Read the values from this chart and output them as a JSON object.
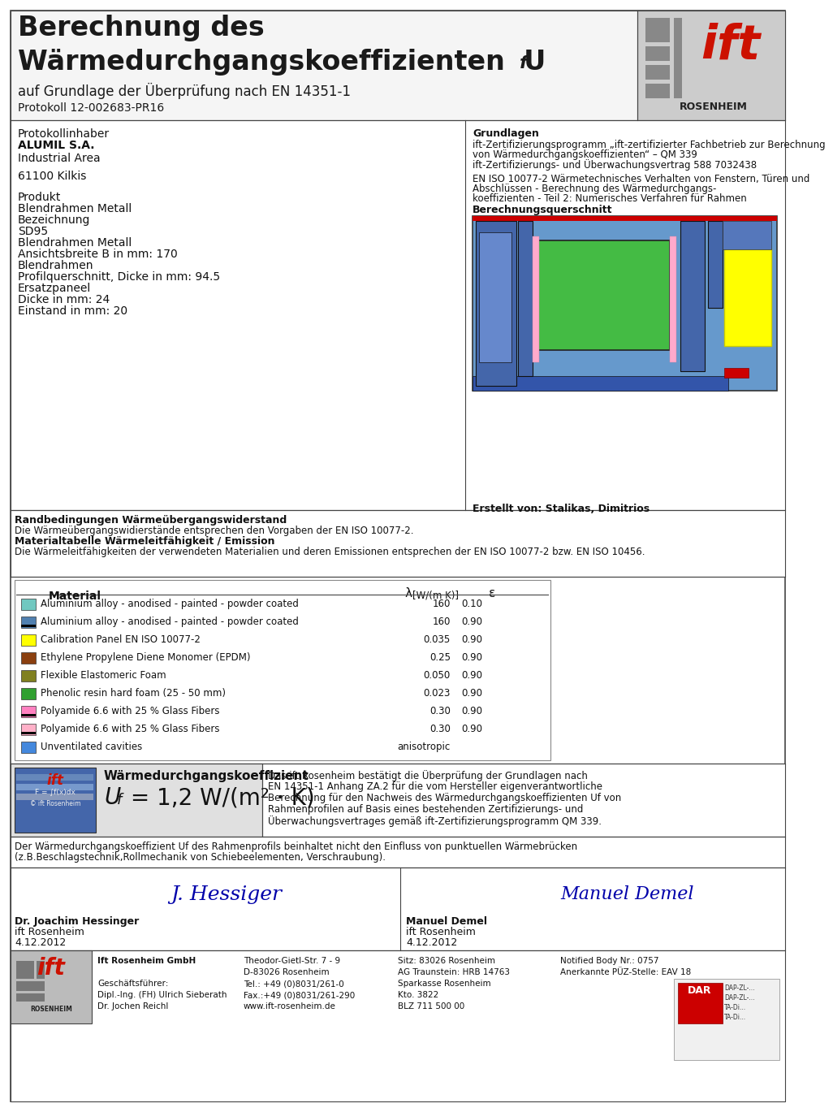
{
  "title_line1": "Berechnung des",
  "title_line2": "Wärmedurchgangskoeffizienten  U",
  "title_f_suffix": "f",
  "subtitle": "auf Grundlage der Überprüfung nach EN 14351-1",
  "protokoll": "Protokoll 12-002683-PR16",
  "left_col": [
    [
      "Protokollinhaber",
      false
    ],
    [
      "ALUMIL S.A.",
      true
    ],
    [
      "Industrial Area",
      false
    ],
    [
      "",
      false
    ],
    [
      "61100 Kilkis",
      false
    ],
    [
      "",
      false
    ],
    [
      "Produkt",
      false
    ],
    [
      "Blendrahmen Metall",
      false
    ],
    [
      "Bezeichnung",
      false
    ],
    [
      "SD95",
      false
    ],
    [
      "Blendrahmen Metall",
      false
    ],
    [
      "Ansichtsbreite B in mm: 170",
      false
    ],
    [
      "Blendrahmen",
      false
    ],
    [
      "Profilquerschnitt, Dicke in mm: 94.5",
      false
    ],
    [
      "Ersatzpaneel",
      false
    ],
    [
      "Dicke in mm: 24",
      false
    ],
    [
      "Einstand in mm: 20",
      false
    ]
  ],
  "grundlagen_title": "Grundlagen",
  "grundlagen_lines": [
    [
      "ift-Zertifizierungsprogramm „ift-zertifizierter Fachbetrieb zur Berechnung",
      false
    ],
    [
      "von Wärmedurchgangskoeffizienten“ – QM 339",
      false
    ],
    [
      "ift-Zertifizierungs- und Überwachungsvertrag 588 7032438",
      false
    ],
    [
      "",
      false
    ],
    [
      "EN ISO 10077-2 Wärmetechnisches Verhalten von Fenstern, Türen und",
      false
    ],
    [
      "Abschlüssen - Berechnung des Wärmedurchgangs-",
      false
    ],
    [
      "koeffizienten - Teil 2: Numerisches Verfahren für Rahmen",
      false
    ]
  ],
  "berechnungsquerschnitt": "Berechnungsquerschnitt",
  "erstellt_von": "Erstellt von: Stalikas, Dimitrios",
  "randbedingungen_title": "Randbedingungen Wärmeübergangswiderstand",
  "randbedingungen_text": "Die Wärmeübergangswidierstände entsprechen den Vorgaben der EN ISO 10077-2.",
  "material_title": "Materialtabelle Wärmeleitfähigkeit / Emission",
  "material_text": "Die Wärmeleitfähigkeiten der verwendeten Materialien und deren Emissionen entsprechen der EN ISO 10077-2 bzw. EN ISO 10456.",
  "materials": [
    {
      "color": "#70C8C0",
      "name": "Aluminium alloy - anodised - painted - powder coated",
      "lambda": "160",
      "eps": "0.10",
      "has_black_bar": false
    },
    {
      "color": "#5080B0",
      "name": "Aluminium alloy - anodised - painted - powder coated",
      "lambda": "160",
      "eps": "0.90",
      "has_black_bar": true
    },
    {
      "color": "#FFFF00",
      "name": "Calibration Panel EN ISO 10077-2",
      "lambda": "0.035",
      "eps": "0.90",
      "has_black_bar": false
    },
    {
      "color": "#8B4010",
      "name": "Ethylene Propylene Diene Monomer (EPDM)",
      "lambda": "0.25",
      "eps": "0.90",
      "has_black_bar": false
    },
    {
      "color": "#808020",
      "name": "Flexible Elastomeric Foam",
      "lambda": "0.050",
      "eps": "0.90",
      "has_black_bar": false
    },
    {
      "color": "#30A030",
      "name": "Phenolic resin hard foam (25 - 50 mm)",
      "lambda": "0.023",
      "eps": "0.90",
      "has_black_bar": false
    },
    {
      "color": "#FF80C0",
      "name": "Polyamide 6.6 with 25 % Glass Fibers",
      "lambda": "0.30",
      "eps": "0.90",
      "has_black_bar": true
    },
    {
      "color": "#FFB0C8",
      "name": "Polyamide 6.6 with 25 % Glass Fibers",
      "lambda": "0.30",
      "eps": "0.90",
      "has_black_bar": true
    },
    {
      "color": "#4488DD",
      "name": "Unventilated cavities",
      "lambda": "anisotropic",
      "eps": "",
      "has_black_bar": false
    }
  ],
  "uf_section_title": "Wärmedurchgangskoeffizient",
  "uf_text": "U",
  "uf_sub": "f",
  "uf_eq": " = 1,2 W/(m² · K)",
  "ift_text_lines": [
    "Das ift Rosenheim bestätigt die Überprüfung der Grundlagen nach",
    "EN 14351-1 Anhang ZA.2 für die vom Hersteller eigenverantwortliche",
    "Berechnung für den Nachweis des Wärmedurchgangskoeffizienten Uf von",
    "Rahmenprofilen auf Basis eines bestehenden Zertifizierungs- und",
    "Überwachungsvertrages gemäß ift-Zertifizierungsprogramm QM 339."
  ],
  "uf_disclaimer1": "Der Wärmedurchgangskoeffizient Uf des Rahmenprofils beinhaltet nicht den Einfluss von punktuellen Wärmebrücken",
  "uf_disclaimer2": "(z.B.Beschlagstechnik,Rollmechanik von Schiebeelementen, Verschraubung).",
  "signer1_name": "Dr. Joachim Hessinger",
  "signer1_org": "ift Rosenheim",
  "signer1_date": "4.12.2012",
  "signer1_sig": "J. Hessiger",
  "signer2_name": "Manuel Demel",
  "signer2_org": "ift Rosenheim",
  "signer2_date": "4.12.2012",
  "signer2_sig": "Manuel Demel",
  "footer_col1": [
    "Ift Rosenheim GmbH",
    "",
    "Geschäftsführer:",
    "Dipl.-Ing. (FH) Ulrich Sieberath",
    "Dr. Jochen Reichl"
  ],
  "footer_col2": [
    "Theodor-Gietl-Str. 7 - 9",
    "D-83026 Rosenheim",
    "Tel.: +49 (0)8031/261-0",
    "Fax.:+49 (0)8031/261-290",
    "www.ift-rosenheim.de"
  ],
  "footer_col3": [
    "Sitz: 83026 Rosenheim",
    "AG Traunstein: HRB 14763",
    "Sparkasse Rosenheim",
    "Kto. 3822",
    "BLZ 711 500 00"
  ],
  "footer_col4": [
    "Notified Body Nr.: 0757",
    "Anerkannte PÜZ-Stelle: EAV 18"
  ]
}
